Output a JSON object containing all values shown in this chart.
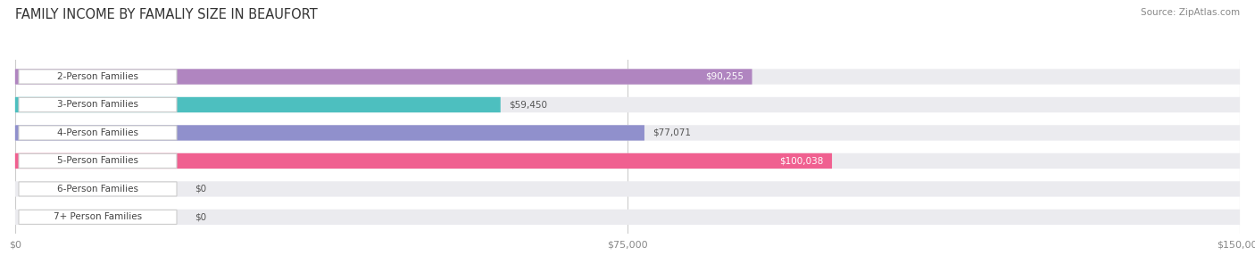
{
  "title": "FAMILY INCOME BY FAMALIY SIZE IN BEAUFORT",
  "source": "Source: ZipAtlas.com",
  "categories": [
    "2-Person Families",
    "3-Person Families",
    "4-Person Families",
    "5-Person Families",
    "6-Person Families",
    "7+ Person Families"
  ],
  "values": [
    90255,
    59450,
    77071,
    100038,
    0,
    0
  ],
  "bar_colors": [
    "#b085c0",
    "#4dbfbf",
    "#9090cc",
    "#f06090",
    "#f5c897",
    "#f0a8a8"
  ],
  "label_colors": [
    "#ffffff",
    "#555555",
    "#555555",
    "#ffffff",
    "#555555",
    "#555555"
  ],
  "xlim": [
    0,
    150000
  ],
  "xticks": [
    0,
    75000,
    150000
  ],
  "xtick_labels": [
    "$0",
    "$75,000",
    "$150,000"
  ],
  "background_color": "#ffffff",
  "bar_bg_color": "#ebebef",
  "value_labels": [
    "$90,255",
    "$59,450",
    "$77,071",
    "$100,038",
    "$0",
    "$0"
  ],
  "figsize": [
    14.06,
    3.05
  ],
  "dpi": 100
}
